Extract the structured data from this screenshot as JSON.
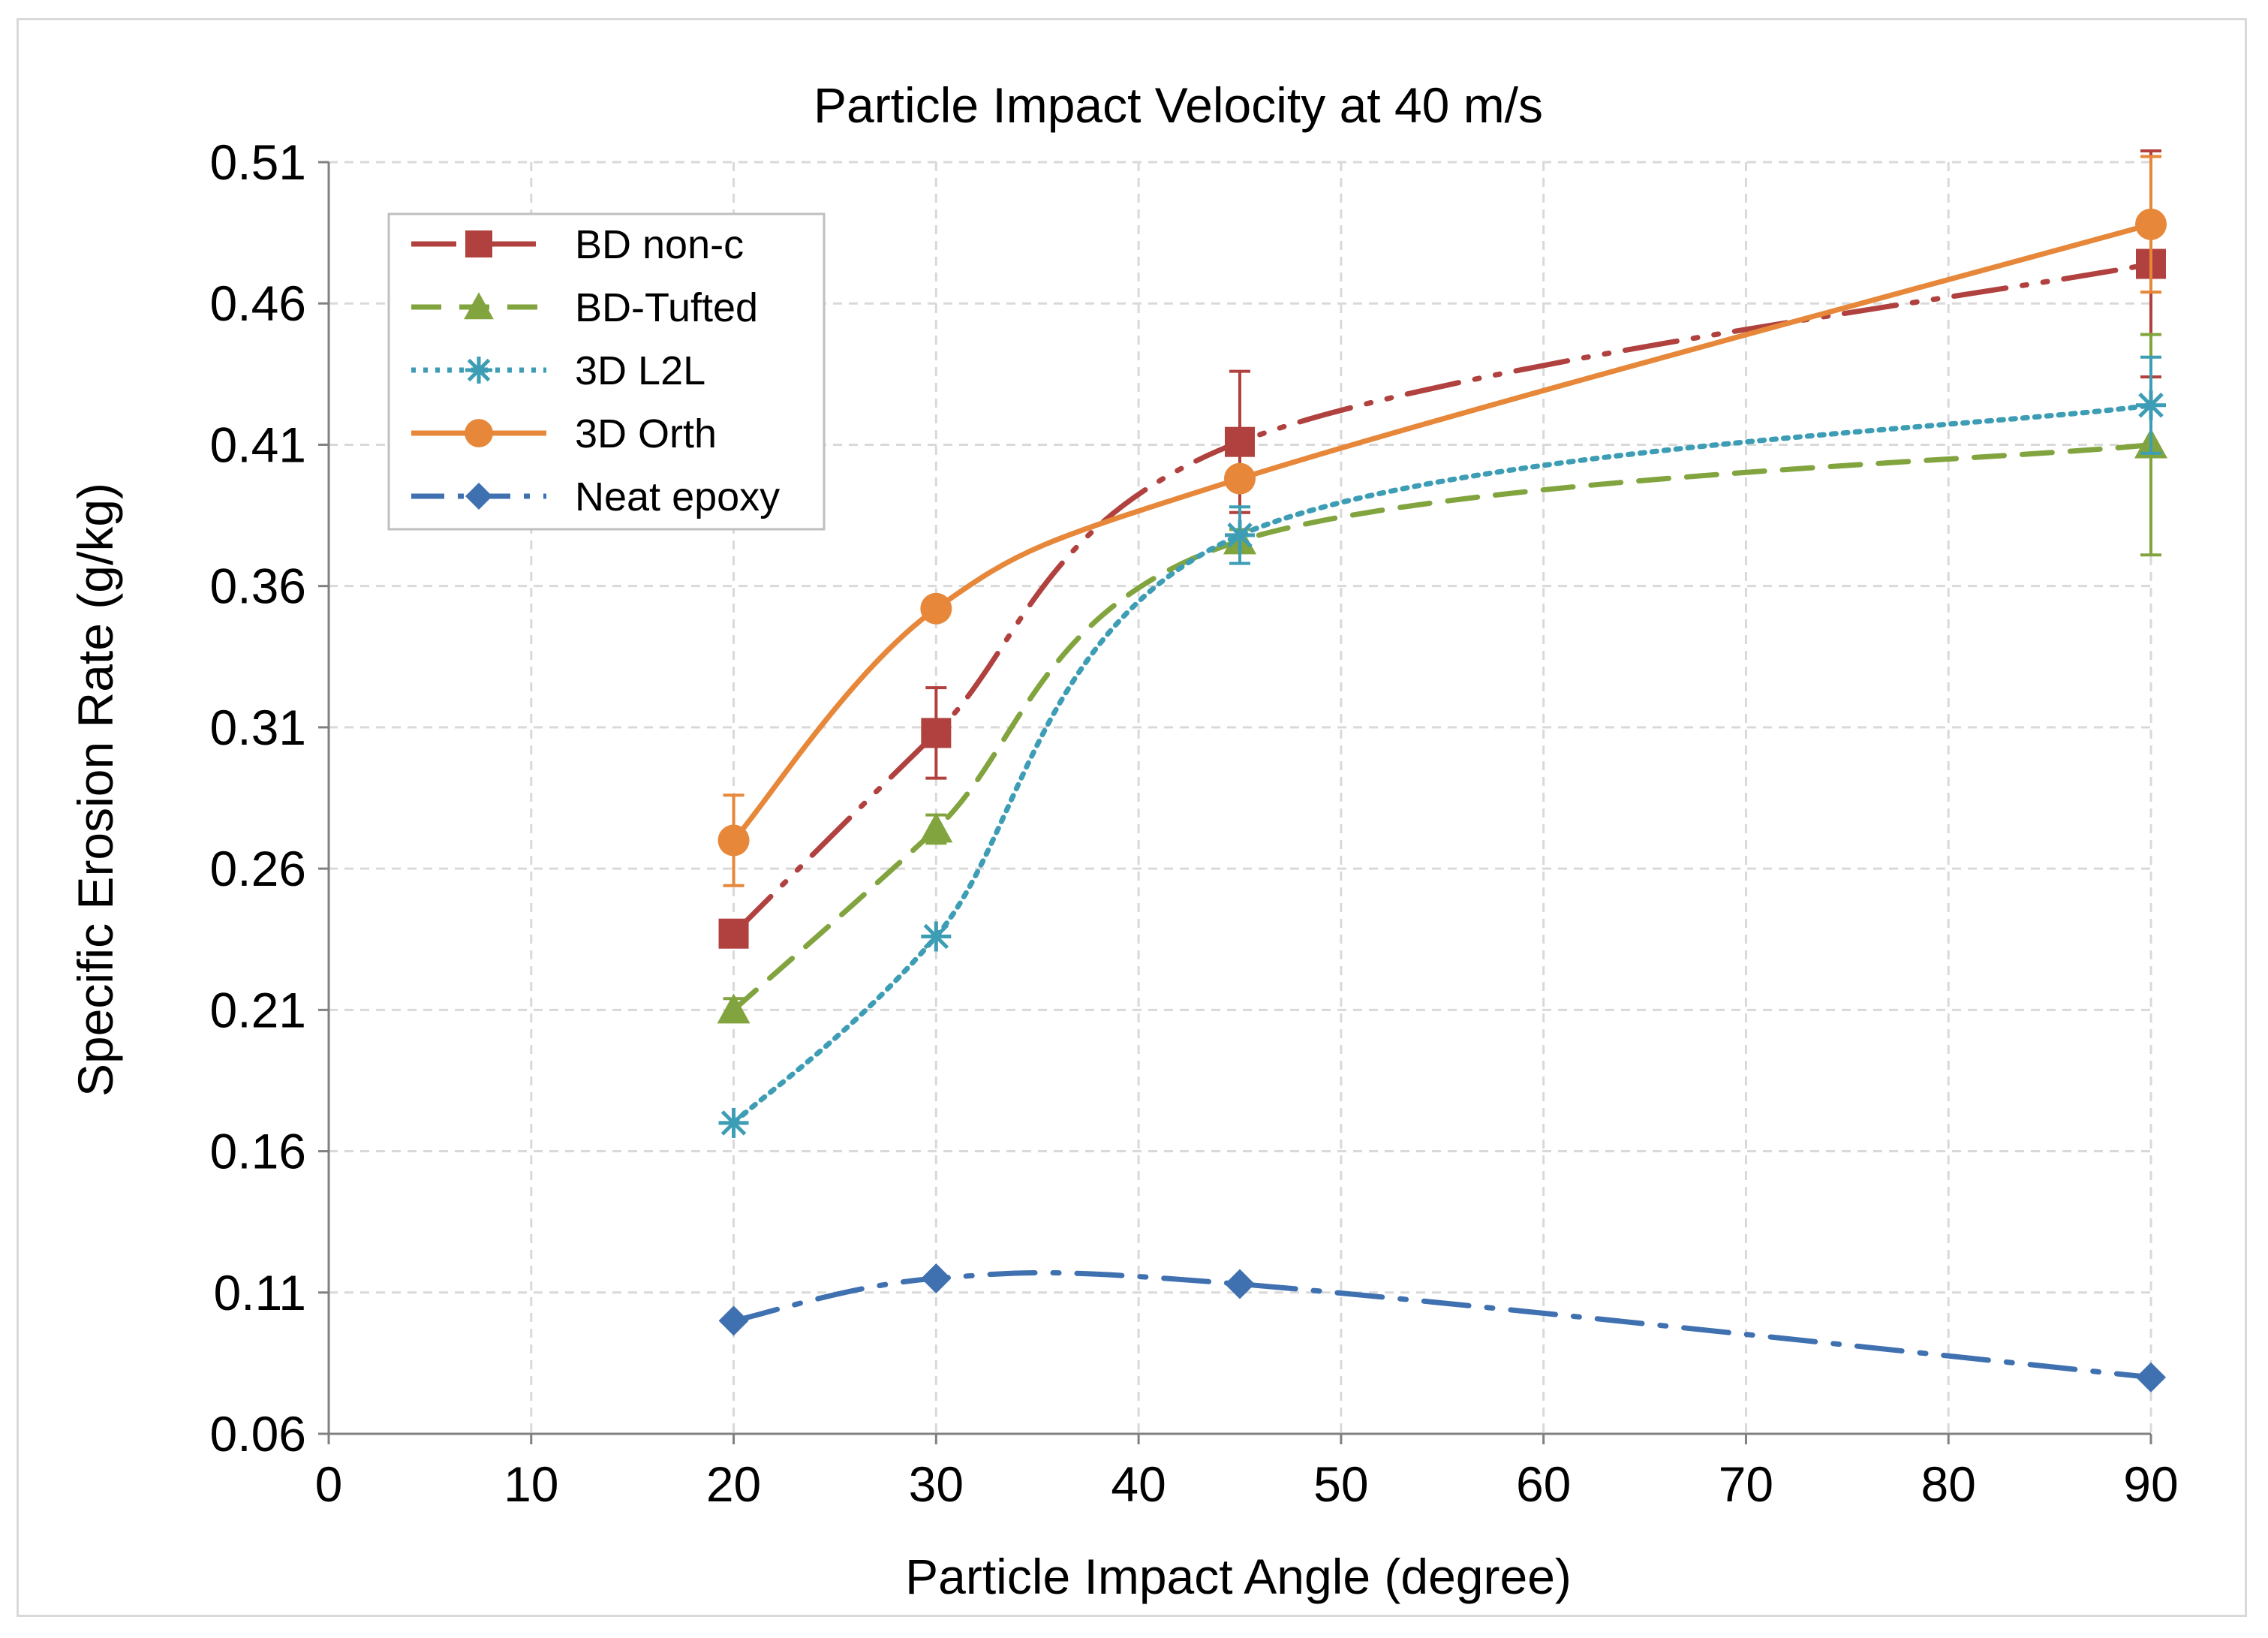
{
  "chart_data": {
    "type": "scatter",
    "title": "Particle Impact Velocity at 40 m/s",
    "xlabel": "Particle Impact Angle (degree)",
    "ylabel": "Specific Erosion Rate (g/kg)",
    "xlim": [
      0,
      90
    ],
    "ylim": [
      0.06,
      0.51
    ],
    "xticks": [
      0,
      10,
      20,
      30,
      40,
      50,
      60,
      70,
      80,
      90
    ],
    "yticks": [
      "0.06",
      "0.11",
      "0.16",
      "0.21",
      "0.26",
      "0.31",
      "0.36",
      "0.41",
      "0.46",
      "0.51"
    ],
    "grid": true,
    "legend_position": "top-left",
    "series": [
      {
        "name": "BD non-c",
        "color": "#b0413e",
        "marker": "square",
        "line_style": "long-dash-dot-dot",
        "x": [
          20,
          30,
          45,
          90
        ],
        "y": [
          0.237,
          0.308,
          0.411,
          0.474
        ],
        "error": [
          0,
          0.016,
          0.025,
          0.04
        ]
      },
      {
        "name": "BD-Tufted",
        "color": "#82a43f",
        "marker": "triangle",
        "line_style": "dashed",
        "x": [
          20,
          30,
          45,
          90
        ],
        "y": [
          0.21,
          0.274,
          0.376,
          0.41
        ],
        "error": [
          0.004,
          0.005,
          0.004,
          0.039
        ]
      },
      {
        "name": "3D L2L",
        "color": "#3d9db5",
        "marker": "asterisk",
        "line_style": "dotted",
        "x": [
          20,
          30,
          45,
          90
        ],
        "y": [
          0.17,
          0.236,
          0.378,
          0.424
        ],
        "error": [
          0,
          0,
          0.01,
          0.017
        ]
      },
      {
        "name": "3D Orth",
        "color": "#e6873a",
        "marker": "circle",
        "line_style": "solid",
        "x": [
          20,
          30,
          45,
          90
        ],
        "y": [
          0.27,
          0.352,
          0.398,
          0.488
        ],
        "error": [
          0.016,
          0,
          0,
          0.024
        ]
      },
      {
        "name": "Neat epoxy",
        "color": "#3f70b0",
        "marker": "diamond",
        "line_style": "dash-dot",
        "x": [
          20,
          30,
          45,
          90
        ],
        "y": [
          0.1,
          0.115,
          0.113,
          0.08
        ],
        "error": [
          0,
          0,
          0,
          0
        ]
      }
    ]
  }
}
